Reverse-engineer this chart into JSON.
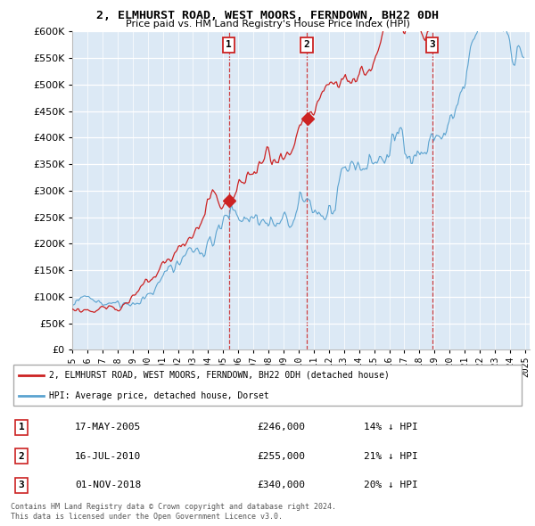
{
  "title": "2, ELMHURST ROAD, WEST MOORS, FERNDOWN, BH22 0DH",
  "subtitle": "Price paid vs. HM Land Registry's House Price Index (HPI)",
  "legend_line1": "2, ELMHURST ROAD, WEST MOORS, FERNDOWN, BH22 0DH (detached house)",
  "legend_line2": "HPI: Average price, detached house, Dorset",
  "transactions": [
    {
      "num": 1,
      "date": "17-MAY-2005",
      "price": "£246,000",
      "pct": "14% ↓ HPI",
      "year": 2005.38
    },
    {
      "num": 2,
      "date": "16-JUL-2010",
      "price": "£255,000",
      "pct": "21% ↓ HPI",
      "year": 2010.54
    },
    {
      "num": 3,
      "date": "01-NOV-2018",
      "price": "£340,000",
      "pct": "20% ↓ HPI",
      "year": 2018.84
    }
  ],
  "transaction_values": [
    246000,
    255000,
    340000
  ],
  "footer_line1": "Contains HM Land Registry data © Crown copyright and database right 2024.",
  "footer_line2": "This data is licensed under the Open Government Licence v3.0.",
  "hpi_color": "#5ba3d0",
  "price_color": "#cc2222",
  "background_color": "#ffffff",
  "chart_bg": "#dce9f5",
  "grid_color": "#ffffff",
  "ylim_max": 600000,
  "xlim_start": 1995.0,
  "xlim_end": 2025.3,
  "yticks": [
    0,
    50000,
    100000,
    150000,
    200000,
    250000,
    300000,
    350000,
    400000,
    450000,
    500000,
    550000,
    600000
  ]
}
